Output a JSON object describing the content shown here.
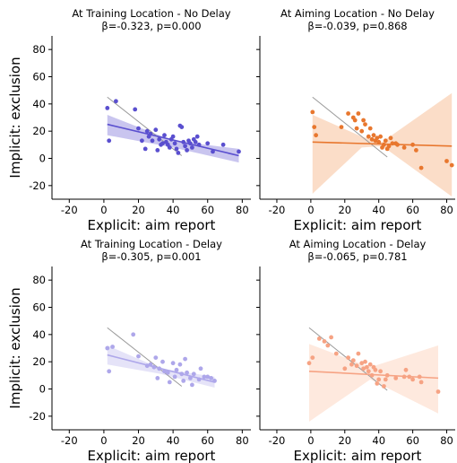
{
  "chart_data": [
    {
      "type": "scatter",
      "title": "At Training Location - No Delay",
      "subtitle": "β=-0.323, p=0.000",
      "xlabel": "Explicit: aim report",
      "ylabel": "Implicit: exclusion",
      "xlim": [
        -30,
        85
      ],
      "ylim": [
        -30,
        90
      ],
      "xticks": [
        -20,
        0,
        20,
        40,
        60,
        80
      ],
      "yticks": [
        -20,
        0,
        20,
        40,
        60,
        80
      ],
      "color": "#5a4fcf",
      "band_color": "#b7b2ea",
      "points": [
        [
          2,
          37
        ],
        [
          3,
          13
        ],
        [
          7,
          42
        ],
        [
          18,
          36
        ],
        [
          20,
          22
        ],
        [
          22,
          13
        ],
        [
          24,
          7
        ],
        [
          25,
          20
        ],
        [
          26,
          16
        ],
        [
          27,
          18
        ],
        [
          28,
          13
        ],
        [
          30,
          21
        ],
        [
          31,
          6
        ],
        [
          32,
          14
        ],
        [
          33,
          10
        ],
        [
          34,
          11
        ],
        [
          35,
          17
        ],
        [
          36,
          12
        ],
        [
          37,
          10
        ],
        [
          38,
          8
        ],
        [
          39,
          14
        ],
        [
          40,
          16
        ],
        [
          41,
          11
        ],
        [
          42,
          7
        ],
        [
          43,
          4
        ],
        [
          44,
          24
        ],
        [
          45,
          23
        ],
        [
          46,
          12
        ],
        [
          47,
          9
        ],
        [
          48,
          6
        ],
        [
          49,
          13
        ],
        [
          50,
          11
        ],
        [
          51,
          8
        ],
        [
          52,
          14
        ],
        [
          53,
          12
        ],
        [
          54,
          16
        ],
        [
          55,
          10
        ],
        [
          60,
          11
        ],
        [
          63,
          5
        ],
        [
          69,
          10
        ],
        [
          78,
          5
        ]
      ],
      "fit": {
        "x0": 2,
        "y0": 25,
        "x1": 78,
        "y1": 2
      },
      "band": [
        [
          2,
          32,
          17
        ],
        [
          40,
          13,
          8
        ],
        [
          78,
          7,
          -3
        ]
      ],
      "reference": {
        "x0": 2,
        "y0": 45,
        "x1": 45,
        "y1": 2
      }
    },
    {
      "type": "scatter",
      "title": "At Aiming Location - No Delay",
      "subtitle": "β=-0.039, p=0.868",
      "xlabel": "Explicit: aim report",
      "ylabel": "",
      "xlim": [
        -30,
        85
      ],
      "ylim": [
        -30,
        90
      ],
      "xticks": [
        -20,
        0,
        20,
        40,
        60,
        80
      ],
      "yticks": [
        -20,
        0,
        20,
        40,
        60,
        80
      ],
      "color": "#e8772e",
      "band_color": "#f9d2b5",
      "points": [
        [
          1,
          34
        ],
        [
          2,
          23
        ],
        [
          3,
          17
        ],
        [
          18,
          23
        ],
        [
          22,
          33
        ],
        [
          25,
          30
        ],
        [
          26,
          28
        ],
        [
          27,
          22
        ],
        [
          28,
          33
        ],
        [
          30,
          20
        ],
        [
          31,
          28
        ],
        [
          32,
          25
        ],
        [
          34,
          16
        ],
        [
          35,
          22
        ],
        [
          36,
          14
        ],
        [
          37,
          17
        ],
        [
          38,
          13
        ],
        [
          39,
          15
        ],
        [
          40,
          12
        ],
        [
          41,
          16
        ],
        [
          42,
          8
        ],
        [
          43,
          10
        ],
        [
          44,
          13
        ],
        [
          45,
          7
        ],
        [
          46,
          9
        ],
        [
          47,
          15
        ],
        [
          48,
          11
        ],
        [
          50,
          11
        ],
        [
          51,
          10
        ],
        [
          55,
          8
        ],
        [
          60,
          10
        ],
        [
          62,
          6
        ],
        [
          65,
          -7
        ],
        [
          80,
          -2
        ],
        [
          83,
          -5
        ]
      ],
      "fit": {
        "x0": 1,
        "y0": 12,
        "x1": 83,
        "y1": 9
      },
      "band": [
        [
          1,
          32,
          -26
        ],
        [
          30,
          16,
          8
        ],
        [
          42,
          12,
          9
        ],
        [
          83,
          48,
          -28
        ]
      ],
      "reference": {
        "x0": 1,
        "y0": 45,
        "x1": 45,
        "y1": 1
      }
    },
    {
      "type": "scatter",
      "title": "At Training Location - Delay",
      "subtitle": "β=-0.305, p=0.001",
      "xlabel": "Explicit: aim report",
      "ylabel": "Implicit: exclusion",
      "xlim": [
        -30,
        85
      ],
      "ylim": [
        -30,
        90
      ],
      "xticks": [
        -20,
        0,
        20,
        40,
        60,
        80
      ],
      "yticks": [
        -20,
        0,
        20,
        40,
        60,
        80
      ],
      "color": "#aea7ea",
      "band_color": "#dcd9f6",
      "points": [
        [
          2,
          30
        ],
        [
          3,
          13
        ],
        [
          5,
          31
        ],
        [
          17,
          40
        ],
        [
          20,
          24
        ],
        [
          25,
          17
        ],
        [
          27,
          18
        ],
        [
          29,
          16
        ],
        [
          30,
          23
        ],
        [
          31,
          8
        ],
        [
          32,
          15
        ],
        [
          34,
          20
        ],
        [
          35,
          13
        ],
        [
          37,
          12
        ],
        [
          38,
          5
        ],
        [
          40,
          19
        ],
        [
          41,
          9
        ],
        [
          42,
          14
        ],
        [
          44,
          18
        ],
        [
          45,
          11
        ],
        [
          46,
          6
        ],
        [
          47,
          22
        ],
        [
          48,
          12
        ],
        [
          50,
          8
        ],
        [
          51,
          3
        ],
        [
          52,
          11
        ],
        [
          55,
          7
        ],
        [
          56,
          15
        ],
        [
          58,
          9
        ],
        [
          60,
          9
        ],
        [
          62,
          8
        ],
        [
          64,
          6
        ]
      ],
      "fit": {
        "x0": 2,
        "y0": 25,
        "x1": 64,
        "y1": 5
      },
      "band": [
        [
          2,
          32,
          18
        ],
        [
          33,
          15,
          11
        ],
        [
          64,
          9,
          1
        ]
      ],
      "reference": {
        "x0": 2,
        "y0": 45,
        "x1": 45,
        "y1": 2
      }
    },
    {
      "type": "scatter",
      "title": "At Aiming Location - Delay",
      "subtitle": "β=-0.065, p=0.781",
      "xlabel": "Explicit: aim report",
      "ylabel": "",
      "xlim": [
        -30,
        85
      ],
      "ylim": [
        -30,
        90
      ],
      "xticks": [
        -20,
        0,
        20,
        40,
        60,
        80
      ],
      "yticks": [
        -20,
        0,
        20,
        40,
        60,
        80
      ],
      "color": "#f6a384",
      "band_color": "#fde1d3",
      "points": [
        [
          -1,
          19
        ],
        [
          1,
          23
        ],
        [
          5,
          37
        ],
        [
          8,
          35
        ],
        [
          10,
          32
        ],
        [
          12,
          38
        ],
        [
          15,
          26
        ],
        [
          20,
          15
        ],
        [
          22,
          23
        ],
        [
          24,
          18
        ],
        [
          25,
          21
        ],
        [
          27,
          17
        ],
        [
          28,
          26
        ],
        [
          30,
          19
        ],
        [
          31,
          15
        ],
        [
          32,
          20
        ],
        [
          33,
          16
        ],
        [
          34,
          13
        ],
        [
          35,
          18
        ],
        [
          36,
          10
        ],
        [
          37,
          16
        ],
        [
          38,
          14
        ],
        [
          39,
          4
        ],
        [
          40,
          7
        ],
        [
          41,
          13
        ],
        [
          43,
          2
        ],
        [
          44,
          7
        ],
        [
          45,
          10
        ],
        [
          50,
          8
        ],
        [
          55,
          9
        ],
        [
          56,
          14
        ],
        [
          58,
          9
        ],
        [
          60,
          7
        ],
        [
          64,
          9
        ],
        [
          65,
          5
        ],
        [
          75,
          -2
        ]
      ],
      "fit": {
        "x0": -1,
        "y0": 13,
        "x1": 75,
        "y1": 8
      },
      "band": [
        [
          -1,
          33,
          -24
        ],
        [
          35,
          16,
          7
        ],
        [
          75,
          32,
          -18
        ]
      ],
      "reference": {
        "x0": -1,
        "y0": 45,
        "x1": 45,
        "y1": -1
      }
    }
  ]
}
